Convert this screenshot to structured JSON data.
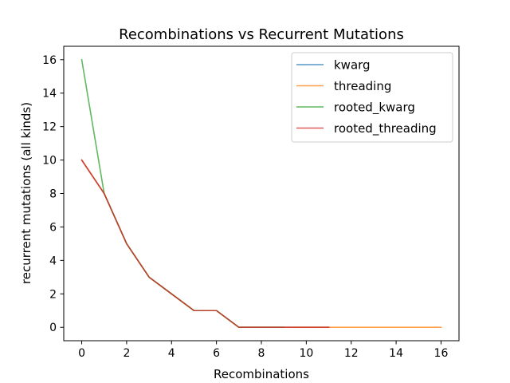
{
  "chart_data": {
    "type": "line",
    "title": "Recombinations vs Recurrent Mutations",
    "xlabel": "Recombinations",
    "ylabel": "recurrent mutations (all kinds)",
    "xlim": [
      -0.8,
      16.8
    ],
    "ylim": [
      -0.8,
      16.8
    ],
    "xticks": [
      0,
      2,
      4,
      6,
      8,
      10,
      12,
      14,
      16
    ],
    "yticks": [
      0,
      2,
      4,
      6,
      8,
      10,
      12,
      14,
      16
    ],
    "grid": false,
    "legend_position": "top-right",
    "series": [
      {
        "name": "kwarg",
        "color": "#1f77b4",
        "x": [
          0,
          1,
          2,
          3,
          4,
          5,
          6,
          7,
          8,
          9,
          10,
          11
        ],
        "y": [
          10,
          8,
          5,
          3,
          2,
          1,
          1,
          0,
          0,
          0,
          0,
          0
        ]
      },
      {
        "name": "threading",
        "color": "#ff7f0e",
        "x": [
          0,
          1,
          2,
          3,
          4,
          5,
          6,
          7,
          8,
          9,
          10,
          11,
          12,
          13,
          14,
          15,
          16
        ],
        "y": [
          10,
          8,
          5,
          3,
          2,
          1,
          1,
          0,
          0,
          0,
          0,
          0,
          0,
          0,
          0,
          0,
          0
        ]
      },
      {
        "name": "rooted_kwarg",
        "color": "#2ca02c",
        "x": [
          0,
          1,
          2,
          3,
          4,
          5,
          6,
          7,
          8,
          9
        ],
        "y": [
          16,
          8,
          5,
          3,
          2,
          1,
          1,
          0,
          0,
          0
        ]
      },
      {
        "name": "rooted_threading",
        "color": "#d62728",
        "x": [
          0,
          1,
          2,
          3,
          4,
          5,
          6,
          7,
          8,
          9,
          10,
          11
        ],
        "y": [
          10,
          8,
          5,
          3,
          2,
          1,
          1,
          0,
          0,
          0,
          0,
          0
        ]
      }
    ]
  }
}
